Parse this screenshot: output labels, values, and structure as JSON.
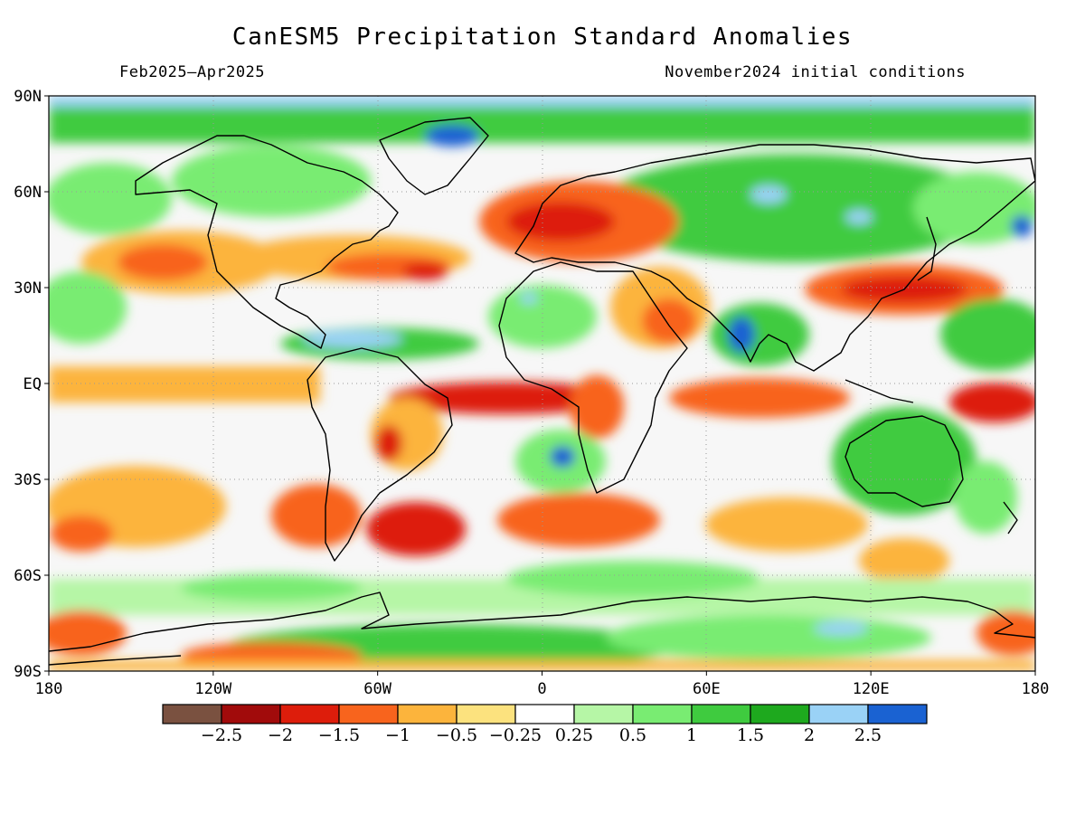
{
  "title": "CanESM5 Precipitation Standard Anomalies",
  "subtitle_left": "Feb2025–Apr2025",
  "subtitle_right": "November2024 initial conditions",
  "map": {
    "lat_labels": [
      "90N",
      "60N",
      "30N",
      "EQ",
      "30S",
      "60S",
      "90S"
    ],
    "lat_values": [
      90,
      60,
      30,
      0,
      -30,
      -60,
      -90
    ],
    "lon_labels": [
      "180",
      "120W",
      "60W",
      "0",
      "60E",
      "120E",
      "180"
    ],
    "lon_values": [
      -180,
      -120,
      -60,
      0,
      60,
      120,
      180
    ],
    "ocean_color": "#f7f7f7"
  },
  "colorbar": {
    "colors": [
      "#7a5140",
      "#a10b0b",
      "#dd1d0b",
      "#f8641d",
      "#fcb43c",
      "#fce27e",
      "#ffffff",
      "#b6f6a6",
      "#79ec72",
      "#3fcb3f",
      "#1ea91e",
      "#9ad2f6",
      "#1a62d2"
    ],
    "labels": [
      "−2.5",
      "−2",
      "−1.5",
      "−1",
      "−0.5",
      "−0.25",
      "0.25",
      "0.5",
      "1",
      "1.5",
      "2",
      "2.5"
    ]
  }
}
